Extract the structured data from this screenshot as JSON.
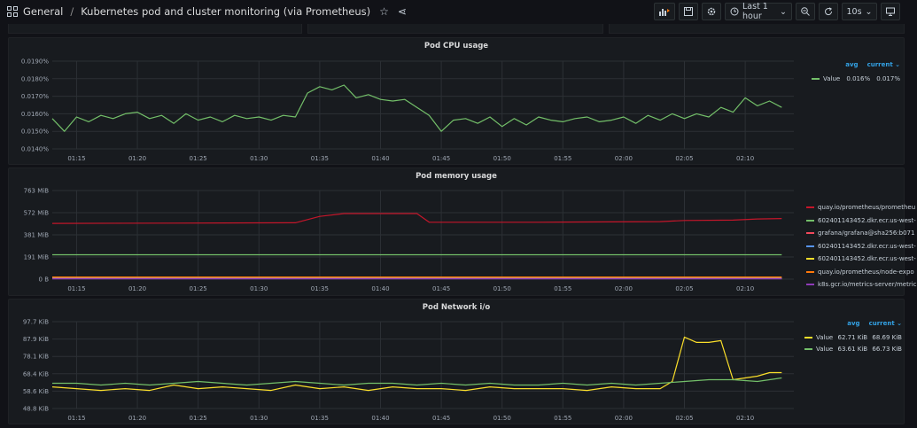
{
  "header": {
    "section": "General",
    "separator": "/",
    "title": "Kubernetes pod and cluster monitoring (via Prometheus)",
    "time_range": "Last 1 hour",
    "refresh": "10s"
  },
  "x_ticks": [
    "01:15",
    "01:20",
    "01:25",
    "01:30",
    "01:35",
    "01:40",
    "01:45",
    "01:50",
    "01:55",
    "02:00",
    "02:05",
    "02:10"
  ],
  "cpu": {
    "title": "Pod CPU usage",
    "y_ticks": [
      "0.0190%",
      "0.0180%",
      "0.0170%",
      "0.0160%",
      "0.0150%",
      "0.0140%"
    ],
    "legend_headers": {
      "avg": "avg",
      "current": "current"
    },
    "legend": [
      {
        "name": "Value",
        "avg": "0.016%",
        "current": "0.017%",
        "color": "#73bf69"
      }
    ]
  },
  "mem": {
    "title": "Pod memory usage",
    "y_ticks": [
      "763 MiB",
      "572 MiB",
      "381 MiB",
      "191 MiB",
      "0 B"
    ],
    "legend": [
      {
        "name": "quay.io/prometheus/prometheu",
        "color": "#c4162a"
      },
      {
        "name": "602401143452.dkr.ecr.us-west-",
        "color": "#73bf69"
      },
      {
        "name": "grafana/grafana@sha256:b071",
        "color": "#f2495c"
      },
      {
        "name": "602401143452.dkr.ecr.us-west-",
        "color": "#5794f2"
      },
      {
        "name": "602401143452.dkr.ecr.us-west-",
        "color": "#fade2a"
      },
      {
        "name": "quay.io/prometheus/node-expo",
        "color": "#ff780a"
      },
      {
        "name": "k8s.gcr.io/metrics-server/metric",
        "color": "#8f3bb8"
      }
    ]
  },
  "net": {
    "title": "Pod Network i/o",
    "y_ticks": [
      "97.7 KiB",
      "87.9 KiB",
      "78.1 KiB",
      "68.4 KiB",
      "58.6 KiB",
      "48.8 KiB"
    ],
    "legend_headers": {
      "avg": "avg",
      "current": "current"
    },
    "legend": [
      {
        "name": "Value",
        "avg": "62.71 KiB",
        "current": "68.69 KiB",
        "color": "#fade2a"
      },
      {
        "name": "Value",
        "avg": "63.61 KiB",
        "current": "66.73 KiB",
        "color": "#73bf69"
      }
    ]
  },
  "chart_data": [
    {
      "type": "line",
      "title": "Pod CPU usage",
      "x_range": [
        "01:13",
        "02:14"
      ],
      "ylim": [
        0.014,
        0.0195
      ],
      "y_unit": "%",
      "series": [
        {
          "name": "Value",
          "color": "#73bf69",
          "x": [
            0,
            1,
            2,
            3,
            4,
            5,
            6,
            7,
            8,
            9,
            10,
            11,
            12,
            13,
            14,
            15,
            16,
            17,
            18,
            19,
            20,
            21,
            22,
            23,
            24,
            25,
            26,
            27,
            28,
            29,
            30,
            31,
            32,
            33,
            34,
            35,
            36,
            37,
            38,
            39,
            40,
            41,
            42,
            43,
            44,
            45,
            46,
            47,
            48,
            49,
            50,
            51,
            52,
            53,
            54,
            55,
            56,
            57,
            58,
            59,
            60
          ],
          "values": [
            0.0159,
            0.0151,
            0.016,
            0.0157,
            0.0161,
            0.0159,
            0.0162,
            0.0163,
            0.0159,
            0.0161,
            0.0156,
            0.0162,
            0.0158,
            0.016,
            0.0157,
            0.0161,
            0.0159,
            0.016,
            0.0158,
            0.0161,
            0.016,
            0.0175,
            0.0179,
            0.0177,
            0.018,
            0.0172,
            0.0174,
            0.0171,
            0.017,
            0.0171,
            0.0166,
            0.0161,
            0.0151,
            0.0158,
            0.0159,
            0.0156,
            0.016,
            0.0154,
            0.0159,
            0.0155,
            0.016,
            0.0158,
            0.0157,
            0.0159,
            0.016,
            0.0157,
            0.0158,
            0.016,
            0.0156,
            0.0161,
            0.0158,
            0.0162,
            0.0159,
            0.0162,
            0.016,
            0.0166,
            0.0163,
            0.0172,
            0.0167,
            0.017,
            0.0166
          ]
        }
      ]
    },
    {
      "type": "line",
      "title": "Pod memory usage",
      "x_range": [
        "01:13",
        "02:14"
      ],
      "ylim": [
        0,
        763
      ],
      "y_unit": "MiB",
      "series": [
        {
          "name": "quay.io/prometheus/prometheu",
          "color": "#c4162a",
          "x": [
            0,
            10,
            20,
            22,
            24,
            30,
            31,
            40,
            50,
            52,
            56,
            58,
            60
          ],
          "values": [
            480,
            482,
            485,
            540,
            565,
            565,
            490,
            490,
            495,
            505,
            508,
            518,
            522
          ]
        },
        {
          "name": "602401143452.dkr.ecr.us-west-",
          "color": "#73bf69",
          "x": [
            0,
            60
          ],
          "values": [
            210,
            210
          ]
        },
        {
          "name": "grafana/grafana@sha256:b071",
          "color": "#f2495c",
          "x": [
            0,
            60
          ],
          "values": [
            12,
            12
          ]
        },
        {
          "name": "602401143452.dkr.ecr.us-west-",
          "color": "#5794f2",
          "x": [
            0,
            60
          ],
          "values": [
            8,
            8
          ]
        },
        {
          "name": "602401143452.dkr.ecr.us-west-",
          "color": "#fade2a",
          "x": [
            0,
            60
          ],
          "values": [
            5,
            5
          ]
        },
        {
          "name": "quay.io/prometheus/node-expo",
          "color": "#ff780a",
          "x": [
            0,
            60
          ],
          "values": [
            18,
            18
          ]
        },
        {
          "name": "k8s.gcr.io/metrics-server/metric",
          "color": "#8f3bb8",
          "x": [
            0,
            60
          ],
          "values": [
            3,
            3
          ]
        }
      ]
    },
    {
      "type": "line",
      "title": "Pod Network i/o",
      "x_range": [
        "01:13",
        "02:14"
      ],
      "ylim": [
        48.8,
        97.7
      ],
      "y_unit": "KiB",
      "series": [
        {
          "name": "Value",
          "color": "#fade2a",
          "x": [
            0,
            2,
            4,
            6,
            8,
            10,
            12,
            14,
            16,
            18,
            20,
            22,
            24,
            26,
            28,
            30,
            32,
            34,
            36,
            38,
            40,
            42,
            44,
            46,
            48,
            50,
            51,
            52,
            53,
            54,
            55,
            56,
            57,
            58,
            59,
            60
          ],
          "values": [
            61,
            60,
            59,
            60,
            59,
            62,
            60,
            61,
            60,
            59,
            62,
            60,
            61,
            59,
            61,
            60,
            60,
            59,
            61,
            60,
            60,
            60,
            59,
            61,
            60,
            60,
            64,
            89,
            86,
            86,
            87,
            65,
            66,
            67,
            69,
            69
          ]
        },
        {
          "name": "Value",
          "color": "#73bf69",
          "x": [
            0,
            2,
            4,
            6,
            8,
            10,
            12,
            14,
            16,
            18,
            20,
            22,
            24,
            26,
            28,
            30,
            32,
            34,
            36,
            38,
            40,
            42,
            44,
            46,
            48,
            50,
            52,
            54,
            56,
            58,
            60
          ],
          "values": [
            63,
            63,
            62,
            63,
            62,
            63,
            64,
            63,
            62,
            63,
            64,
            63,
            62,
            63,
            63,
            62,
            63,
            62,
            63,
            62,
            62,
            63,
            62,
            63,
            62,
            63,
            64,
            65,
            65,
            64,
            66
          ]
        }
      ]
    }
  ]
}
